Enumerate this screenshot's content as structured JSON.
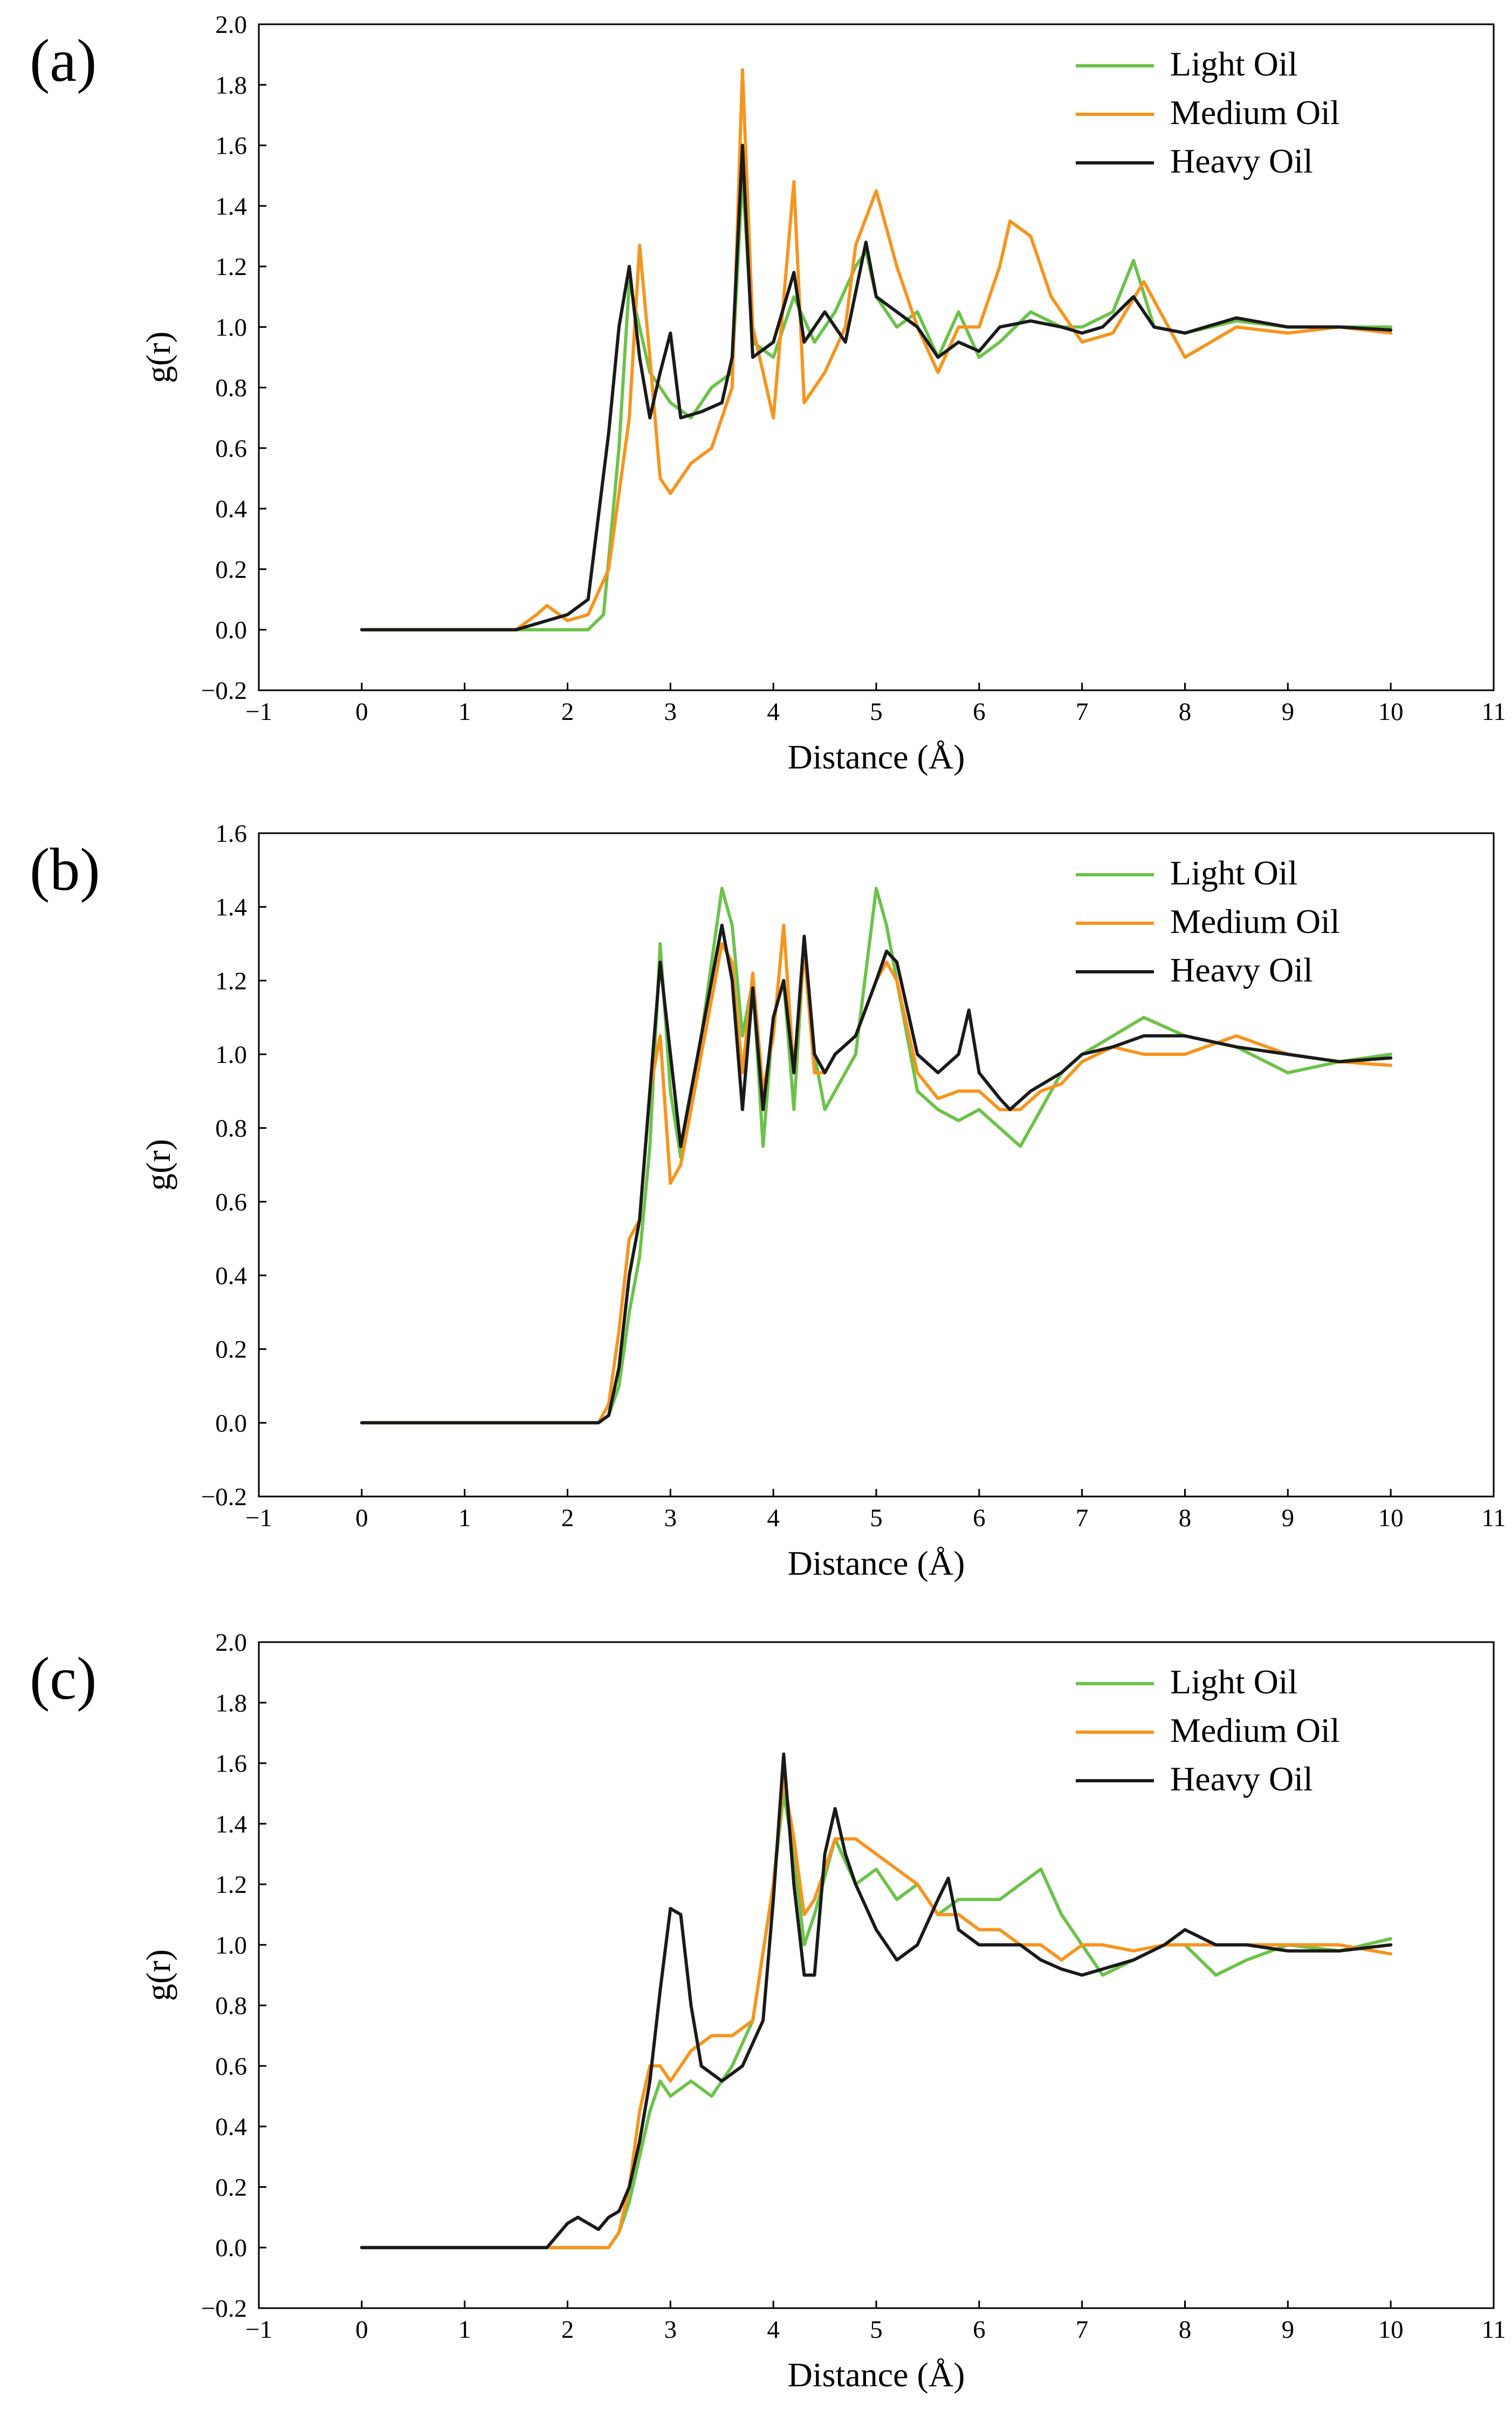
{
  "colors": {
    "light": "#6cc24a",
    "medium": "#f7941d",
    "heavy": "#1a1a1a"
  },
  "chart_data": [
    {
      "type": "line",
      "panel_label": "(a)",
      "xlabel": "Distance (Å)",
      "ylabel": "g(r)",
      "xlim": [
        -1,
        11
      ],
      "ylim": [
        -0.2,
        2.0
      ],
      "xticks": [
        -1,
        0,
        1,
        2,
        3,
        4,
        5,
        6,
        7,
        8,
        9,
        10,
        11
      ],
      "xtick_labels": [
        "−1",
        "0",
        "1",
        "2",
        "3",
        "4",
        "5",
        "6",
        "7",
        "8",
        "9",
        "10",
        "11"
      ],
      "yticks": [
        -0.2,
        0.0,
        0.2,
        0.4,
        0.6,
        0.8,
        1.0,
        1.2,
        1.4,
        1.6,
        1.8,
        2.0
      ],
      "ytick_labels": [
        "−0.2",
        "0.0",
        "0.2",
        "0.4",
        "0.6",
        "0.8",
        "1.0",
        "1.2",
        "1.4",
        "1.6",
        "1.8",
        "2.0"
      ],
      "legend": {
        "position": "top-right",
        "entries": [
          "Light Oil",
          "Medium Oil",
          "Heavy Oil"
        ]
      },
      "series": [
        {
          "name": "Light Oil",
          "color": "light",
          "x": [
            0,
            1.5,
            1.8,
            2.0,
            2.2,
            2.35,
            2.5,
            2.6,
            2.7,
            2.8,
            2.9,
            3.0,
            3.2,
            3.4,
            3.6,
            3.7,
            3.8,
            4.0,
            4.2,
            4.4,
            4.6,
            4.8,
            4.9,
            5.0,
            5.2,
            5.4,
            5.6,
            5.8,
            6.0,
            6.2,
            6.5,
            6.8,
            7.0,
            7.3,
            7.5,
            7.7,
            8.0,
            8.5,
            9.0,
            9.5,
            10.0
          ],
          "y": [
            0,
            0,
            0,
            0,
            0.0,
            0.05,
            0.6,
            1.15,
            1.0,
            0.85,
            0.8,
            0.75,
            0.7,
            0.8,
            0.85,
            1.5,
            0.95,
            0.9,
            1.1,
            0.95,
            1.05,
            1.2,
            1.25,
            1.1,
            1.0,
            1.05,
            0.9,
            1.05,
            0.9,
            0.95,
            1.05,
            1.0,
            1.0,
            1.05,
            1.22,
            1.0,
            0.98,
            1.02,
            1.0,
            1.0,
            1.0
          ]
        },
        {
          "name": "Medium Oil",
          "color": "medium",
          "x": [
            0,
            1.5,
            1.7,
            1.8,
            2.0,
            2.2,
            2.4,
            2.6,
            2.7,
            2.8,
            2.9,
            3.0,
            3.2,
            3.4,
            3.6,
            3.7,
            3.8,
            4.0,
            4.2,
            4.3,
            4.5,
            4.7,
            4.8,
            5.0,
            5.2,
            5.4,
            5.6,
            5.8,
            6.0,
            6.2,
            6.3,
            6.5,
            6.7,
            7.0,
            7.3,
            7.6,
            8.0,
            8.5,
            9.0,
            9.5,
            10.0
          ],
          "y": [
            0,
            0,
            0.05,
            0.08,
            0.03,
            0.05,
            0.2,
            0.7,
            1.27,
            0.9,
            0.5,
            0.45,
            0.55,
            0.6,
            0.8,
            1.85,
            1.0,
            0.7,
            1.48,
            0.75,
            0.85,
            1.0,
            1.27,
            1.45,
            1.2,
            1.0,
            0.85,
            1.0,
            1.0,
            1.2,
            1.35,
            1.3,
            1.1,
            0.95,
            0.98,
            1.15,
            0.9,
            1.0,
            0.98,
            1.0,
            0.98
          ]
        },
        {
          "name": "Heavy Oil",
          "color": "heavy",
          "x": [
            0,
            1.5,
            1.7,
            2.0,
            2.2,
            2.4,
            2.5,
            2.6,
            2.7,
            2.8,
            2.9,
            3.0,
            3.1,
            3.3,
            3.5,
            3.6,
            3.7,
            3.8,
            4.0,
            4.2,
            4.3,
            4.5,
            4.7,
            4.9,
            5.0,
            5.2,
            5.4,
            5.6,
            5.8,
            6.0,
            6.2,
            6.5,
            6.8,
            7.0,
            7.2,
            7.5,
            7.7,
            8.0,
            8.5,
            9.0,
            9.5,
            10.0
          ],
          "y": [
            0,
            0,
            0.02,
            0.05,
            0.1,
            0.65,
            1.0,
            1.2,
            0.9,
            0.7,
            0.85,
            0.98,
            0.7,
            0.72,
            0.75,
            0.9,
            1.6,
            0.9,
            0.95,
            1.18,
            0.95,
            1.05,
            0.95,
            1.28,
            1.1,
            1.05,
            1.0,
            0.9,
            0.95,
            0.92,
            1.0,
            1.02,
            1.0,
            0.98,
            1.0,
            1.1,
            1.0,
            0.98,
            1.03,
            1.0,
            1.0,
            0.99
          ]
        }
      ]
    },
    {
      "type": "line",
      "panel_label": "(b)",
      "xlabel": "Distance (Å)",
      "ylabel": "g(r)",
      "xlim": [
        -1,
        11
      ],
      "ylim": [
        -0.2,
        1.6
      ],
      "xticks": [
        -1,
        0,
        1,
        2,
        3,
        4,
        5,
        6,
        7,
        8,
        9,
        10,
        11
      ],
      "xtick_labels": [
        "−1",
        "0",
        "1",
        "2",
        "3",
        "4",
        "5",
        "6",
        "7",
        "8",
        "9",
        "10",
        "11"
      ],
      "yticks": [
        -0.2,
        0.0,
        0.2,
        0.4,
        0.6,
        0.8,
        1.0,
        1.2,
        1.4,
        1.6
      ],
      "ytick_labels": [
        "−0.2",
        "0.0",
        "0.2",
        "0.4",
        "0.6",
        "0.8",
        "1.0",
        "1.2",
        "1.4",
        "1.6"
      ],
      "legend": {
        "position": "top-right",
        "entries": [
          "Light Oil",
          "Medium Oil",
          "Heavy Oil"
        ]
      },
      "series": [
        {
          "name": "Light Oil",
          "color": "light",
          "x": [
            0,
            2.3,
            2.4,
            2.5,
            2.6,
            2.7,
            2.8,
            2.9,
            3.0,
            3.1,
            3.3,
            3.5,
            3.6,
            3.7,
            3.8,
            3.9,
            4.0,
            4.1,
            4.2,
            4.3,
            4.4,
            4.5,
            4.6,
            4.8,
            5.0,
            5.1,
            5.2,
            5.4,
            5.6,
            5.8,
            6.0,
            6.2,
            6.4,
            6.6,
            6.8,
            7.0,
            7.3,
            7.6,
            8.0,
            8.5,
            9.0,
            9.5,
            10.0
          ],
          "y": [
            0,
            0,
            0.02,
            0.1,
            0.3,
            0.45,
            0.75,
            1.3,
            0.9,
            0.72,
            1.05,
            1.45,
            1.35,
            1.05,
            1.2,
            0.75,
            1.1,
            1.2,
            0.85,
            1.3,
            1.0,
            0.85,
            0.9,
            1.0,
            1.45,
            1.35,
            1.2,
            0.9,
            0.85,
            0.82,
            0.85,
            0.8,
            0.75,
            0.85,
            0.95,
            1.0,
            1.05,
            1.1,
            1.05,
            1.02,
            0.95,
            0.98,
            1.0
          ]
        },
        {
          "name": "Medium Oil",
          "color": "medium",
          "x": [
            0,
            2.3,
            2.4,
            2.5,
            2.6,
            2.7,
            2.8,
            2.9,
            3.0,
            3.1,
            3.3,
            3.5,
            3.6,
            3.7,
            3.8,
            3.9,
            4.0,
            4.1,
            4.2,
            4.3,
            4.4,
            4.5,
            4.6,
            4.8,
            5.0,
            5.1,
            5.2,
            5.4,
            5.6,
            5.8,
            6.0,
            6.2,
            6.4,
            6.6,
            6.8,
            7.0,
            7.3,
            7.6,
            8.0,
            8.5,
            9.0,
            9.5,
            10.0
          ],
          "y": [
            0,
            0,
            0.05,
            0.25,
            0.5,
            0.55,
            0.9,
            1.05,
            0.65,
            0.7,
            1.0,
            1.3,
            1.25,
            0.95,
            1.22,
            0.9,
            1.05,
            1.35,
            0.95,
            1.28,
            0.95,
            0.95,
            1.0,
            1.05,
            1.2,
            1.25,
            1.2,
            0.95,
            0.88,
            0.9,
            0.9,
            0.85,
            0.85,
            0.9,
            0.92,
            0.98,
            1.02,
            1.0,
            1.0,
            1.05,
            1.0,
            0.98,
            0.97
          ]
        },
        {
          "name": "Heavy Oil",
          "color": "heavy",
          "x": [
            0,
            2.3,
            2.4,
            2.5,
            2.6,
            2.7,
            2.8,
            2.9,
            3.0,
            3.1,
            3.3,
            3.5,
            3.6,
            3.7,
            3.8,
            3.9,
            4.0,
            4.1,
            4.2,
            4.3,
            4.4,
            4.5,
            4.6,
            4.8,
            5.0,
            5.1,
            5.2,
            5.4,
            5.6,
            5.8,
            5.9,
            6.0,
            6.2,
            6.3,
            6.5,
            6.8,
            7.0,
            7.3,
            7.6,
            8.0,
            8.5,
            9.0,
            9.5,
            10.0
          ],
          "y": [
            0,
            0,
            0.02,
            0.15,
            0.4,
            0.55,
            0.9,
            1.25,
            1.0,
            0.75,
            1.05,
            1.35,
            1.2,
            0.85,
            1.18,
            0.85,
            1.1,
            1.2,
            0.95,
            1.32,
            1.0,
            0.95,
            1.0,
            1.05,
            1.2,
            1.28,
            1.25,
            1.0,
            0.95,
            1.0,
            1.12,
            0.95,
            0.88,
            0.85,
            0.9,
            0.95,
            1.0,
            1.02,
            1.05,
            1.05,
            1.02,
            1.0,
            0.98,
            0.99
          ]
        }
      ]
    },
    {
      "type": "line",
      "panel_label": "(c)",
      "xlabel": "Distance (Å)",
      "ylabel": "g(r)",
      "xlim": [
        -1,
        11
      ],
      "ylim": [
        -0.2,
        2.0
      ],
      "xticks": [
        -1,
        0,
        1,
        2,
        3,
        4,
        5,
        6,
        7,
        8,
        9,
        10,
        11
      ],
      "xtick_labels": [
        "−1",
        "0",
        "1",
        "2",
        "3",
        "4",
        "5",
        "6",
        "7",
        "8",
        "9",
        "10",
        "11"
      ],
      "yticks": [
        -0.2,
        0.0,
        0.2,
        0.4,
        0.6,
        0.8,
        1.0,
        1.2,
        1.4,
        1.6,
        1.8,
        2.0
      ],
      "ytick_labels": [
        "−0.2",
        "0.0",
        "0.2",
        "0.4",
        "0.6",
        "0.8",
        "1.0",
        "1.2",
        "1.4",
        "1.6",
        "1.8",
        "2.0"
      ],
      "legend": {
        "position": "top-right",
        "entries": [
          "Light Oil",
          "Medium Oil",
          "Heavy Oil"
        ]
      },
      "series": [
        {
          "name": "Light Oil",
          "color": "light",
          "x": [
            0,
            2.4,
            2.5,
            2.6,
            2.7,
            2.8,
            2.9,
            3.0,
            3.2,
            3.4,
            3.6,
            3.8,
            4.0,
            4.1,
            4.2,
            4.3,
            4.4,
            4.6,
            4.8,
            5.0,
            5.2,
            5.4,
            5.6,
            5.8,
            6.0,
            6.2,
            6.4,
            6.6,
            6.8,
            7.0,
            7.2,
            7.5,
            7.8,
            8.0,
            8.3,
            8.6,
            9.0,
            9.5,
            10.0
          ],
          "y": [
            0,
            0,
            0.05,
            0.15,
            0.3,
            0.45,
            0.55,
            0.5,
            0.55,
            0.5,
            0.6,
            0.75,
            1.2,
            1.5,
            1.3,
            1.0,
            1.1,
            1.35,
            1.2,
            1.25,
            1.15,
            1.2,
            1.1,
            1.15,
            1.15,
            1.15,
            1.2,
            1.25,
            1.1,
            1.0,
            0.9,
            0.95,
            1.0,
            1.0,
            0.9,
            0.95,
            1.0,
            0.98,
            1.02
          ]
        },
        {
          "name": "Medium Oil",
          "color": "medium",
          "x": [
            0,
            2.4,
            2.5,
            2.6,
            2.7,
            2.8,
            2.9,
            3.0,
            3.2,
            3.4,
            3.6,
            3.8,
            4.0,
            4.1,
            4.2,
            4.3,
            4.4,
            4.6,
            4.8,
            5.0,
            5.2,
            5.4,
            5.6,
            5.8,
            6.0,
            6.2,
            6.4,
            6.6,
            6.8,
            7.0,
            7.2,
            7.5,
            7.8,
            8.0,
            8.3,
            8.6,
            9.0,
            9.5,
            10.0
          ],
          "y": [
            0,
            0,
            0.05,
            0.2,
            0.45,
            0.6,
            0.6,
            0.55,
            0.65,
            0.7,
            0.7,
            0.75,
            1.2,
            1.55,
            1.35,
            1.1,
            1.15,
            1.35,
            1.35,
            1.3,
            1.25,
            1.2,
            1.1,
            1.1,
            1.05,
            1.05,
            1.0,
            1.0,
            0.95,
            1.0,
            1.0,
            0.98,
            1.0,
            1.0,
            1.0,
            1.0,
            1.0,
            1.0,
            0.97
          ]
        },
        {
          "name": "Heavy Oil",
          "color": "heavy",
          "x": [
            0,
            1.8,
            2.0,
            2.1,
            2.2,
            2.3,
            2.4,
            2.5,
            2.6,
            2.7,
            2.8,
            2.9,
            3.0,
            3.1,
            3.2,
            3.3,
            3.5,
            3.7,
            3.9,
            4.0,
            4.1,
            4.2,
            4.3,
            4.4,
            4.5,
            4.6,
            4.7,
            4.8,
            5.0,
            5.2,
            5.4,
            5.6,
            5.7,
            5.8,
            6.0,
            6.2,
            6.4,
            6.6,
            6.8,
            7.0,
            7.2,
            7.5,
            7.8,
            8.0,
            8.3,
            8.6,
            9.0,
            9.5,
            10.0
          ],
          "y": [
            0,
            0,
            0.08,
            0.1,
            0.08,
            0.06,
            0.1,
            0.12,
            0.2,
            0.35,
            0.55,
            0.85,
            1.12,
            1.1,
            0.8,
            0.6,
            0.55,
            0.6,
            0.75,
            1.15,
            1.63,
            1.2,
            0.9,
            0.9,
            1.3,
            1.45,
            1.3,
            1.2,
            1.05,
            0.95,
            1.0,
            1.15,
            1.22,
            1.05,
            1.0,
            1.0,
            1.0,
            0.95,
            0.92,
            0.9,
            0.92,
            0.95,
            1.0,
            1.05,
            1.0,
            1.0,
            0.98,
            0.98,
            1.0
          ]
        }
      ]
    }
  ]
}
